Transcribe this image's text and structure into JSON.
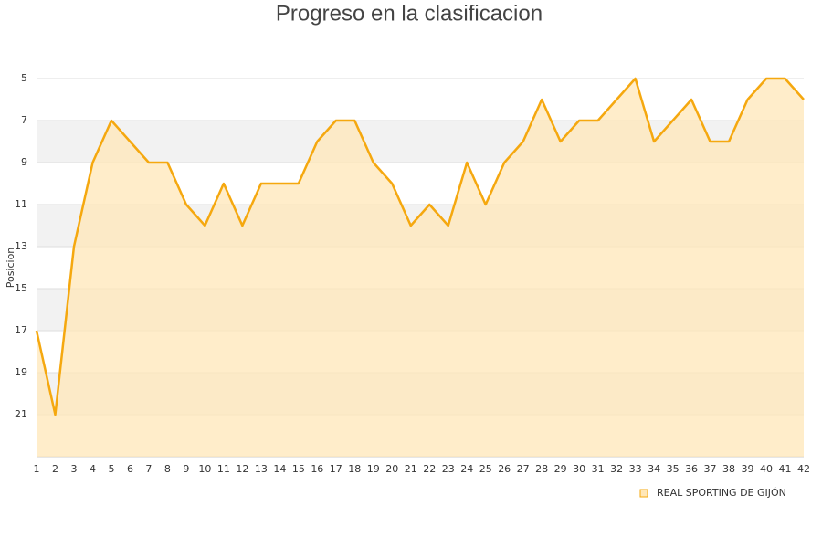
{
  "chart_data": {
    "type": "line",
    "title": "Progreso en la clasificacion",
    "y_label": "Posicion",
    "x": [
      1,
      2,
      3,
      4,
      5,
      6,
      7,
      8,
      9,
      10,
      11,
      12,
      13,
      14,
      15,
      16,
      17,
      18,
      19,
      20,
      21,
      22,
      23,
      24,
      25,
      26,
      27,
      28,
      29,
      30,
      31,
      32,
      33,
      34,
      35,
      36,
      37,
      38,
      39,
      40,
      41,
      42
    ],
    "xlim": [
      1,
      42
    ],
    "series": [
      {
        "name": "REAL SPORTING DE GIJÓN",
        "color": "#f5a80f",
        "fill": "#ffe7b8",
        "values": [
          17,
          21,
          13,
          9,
          7,
          8,
          9,
          9,
          11,
          12,
          10,
          12,
          10,
          10,
          10,
          8,
          7,
          7,
          9,
          10,
          12,
          11,
          12,
          9,
          11,
          9,
          8,
          6,
          8,
          7,
          7,
          6,
          5,
          8,
          7,
          6,
          8,
          8,
          6,
          5,
          5,
          6
        ]
      }
    ],
    "ylim": [
      5,
      23
    ],
    "y_inverted": true,
    "yticks": [
      5,
      7,
      9,
      11,
      13,
      15,
      17,
      19,
      21
    ],
    "grid": true,
    "legend": "bottom-right"
  }
}
